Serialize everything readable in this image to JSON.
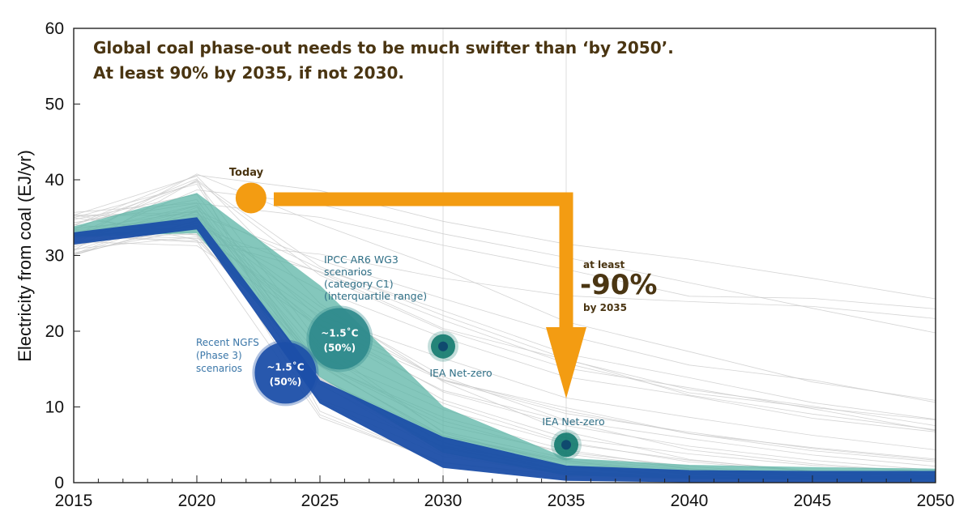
{
  "chart_data": {
    "type": "area",
    "title_lines": [
      "Global coal phase-out needs to be much swifter than ‘by 2050’.",
      "At least 90% by 2035, if not 2030."
    ],
    "ylabel": "Electricity from coal (EJ/yr)",
    "xlabel": "",
    "xlim": [
      2015,
      2050
    ],
    "ylim": [
      0,
      60
    ],
    "x_ticks": [
      2015,
      2020,
      2025,
      2030,
      2035,
      2040,
      2045,
      2050
    ],
    "y_ticks": [
      0,
      10,
      20,
      30,
      40,
      50,
      60
    ],
    "gridlines_x": [
      2030,
      2035
    ],
    "series": [
      {
        "name": "IPCC AR6 WG3 scenarios (category C1) (interquartile range)",
        "kind": "band",
        "color": "#5bb5a6",
        "x": [
          2015,
          2020,
          2025,
          2030,
          2035,
          2040,
          2045,
          2050
        ],
        "lower": [
          32.5,
          33.0,
          14.0,
          4.0,
          1.0,
          0.6,
          0.4,
          0.3
        ],
        "upper": [
          33.8,
          38.2,
          26.0,
          10.0,
          3.2,
          2.3,
          2.0,
          1.8
        ]
      },
      {
        "name": "Recent NGFS (Phase 3) scenarios",
        "kind": "band",
        "color": "#1c4fa8",
        "x": [
          2015,
          2020,
          2025,
          2030,
          2035,
          2040,
          2045,
          2050
        ],
        "lower": [
          31.5,
          33.5,
          10.5,
          2.0,
          0.3,
          0.1,
          0.0,
          0.0
        ],
        "upper": [
          33.0,
          35.0,
          13.5,
          6.0,
          2.2,
          1.6,
          1.5,
          1.5
        ]
      }
    ],
    "points": [
      {
        "name": "Today",
        "label": "Today",
        "x": 2022.2,
        "y": 37.6,
        "color": "#f39c12"
      },
      {
        "name": "IEA Net-zero 2030",
        "label": "IEA Net-zero",
        "x": 2030,
        "y": 18.0,
        "color": "#137a6e"
      },
      {
        "name": "IEA Net-zero 2035",
        "label": "IEA Net-zero",
        "x": 2035,
        "y": 5.0,
        "color": "#137a6e"
      }
    ],
    "bubbles": [
      {
        "name": "ngfs",
        "line1": "~1.5˚C",
        "line2": "(50%)",
        "x": 2023.6,
        "y": 14.5,
        "color": "#1c4fa8"
      },
      {
        "name": "ipcc",
        "line1": "~1.5˚C",
        "line2": "(50%)",
        "x": 2025.8,
        "y": 19.0,
        "color": "#2f8a8c"
      }
    ],
    "annotations": {
      "ngfs_label": [
        "Recent NGFS",
        "(Phase 3)",
        "scenarios"
      ],
      "ipcc_label": [
        "IPCC AR6 WG3",
        "scenarios",
        "(category C1)",
        "(interquartile range)"
      ],
      "reduction": {
        "line1": "at least",
        "value": "-90%",
        "line2": "by 2035"
      }
    }
  },
  "colors": {
    "arrow": "#f39c12",
    "title": "#4a3512",
    "grid": "#dddddd",
    "scenario_lines": "#c9c9c9"
  }
}
